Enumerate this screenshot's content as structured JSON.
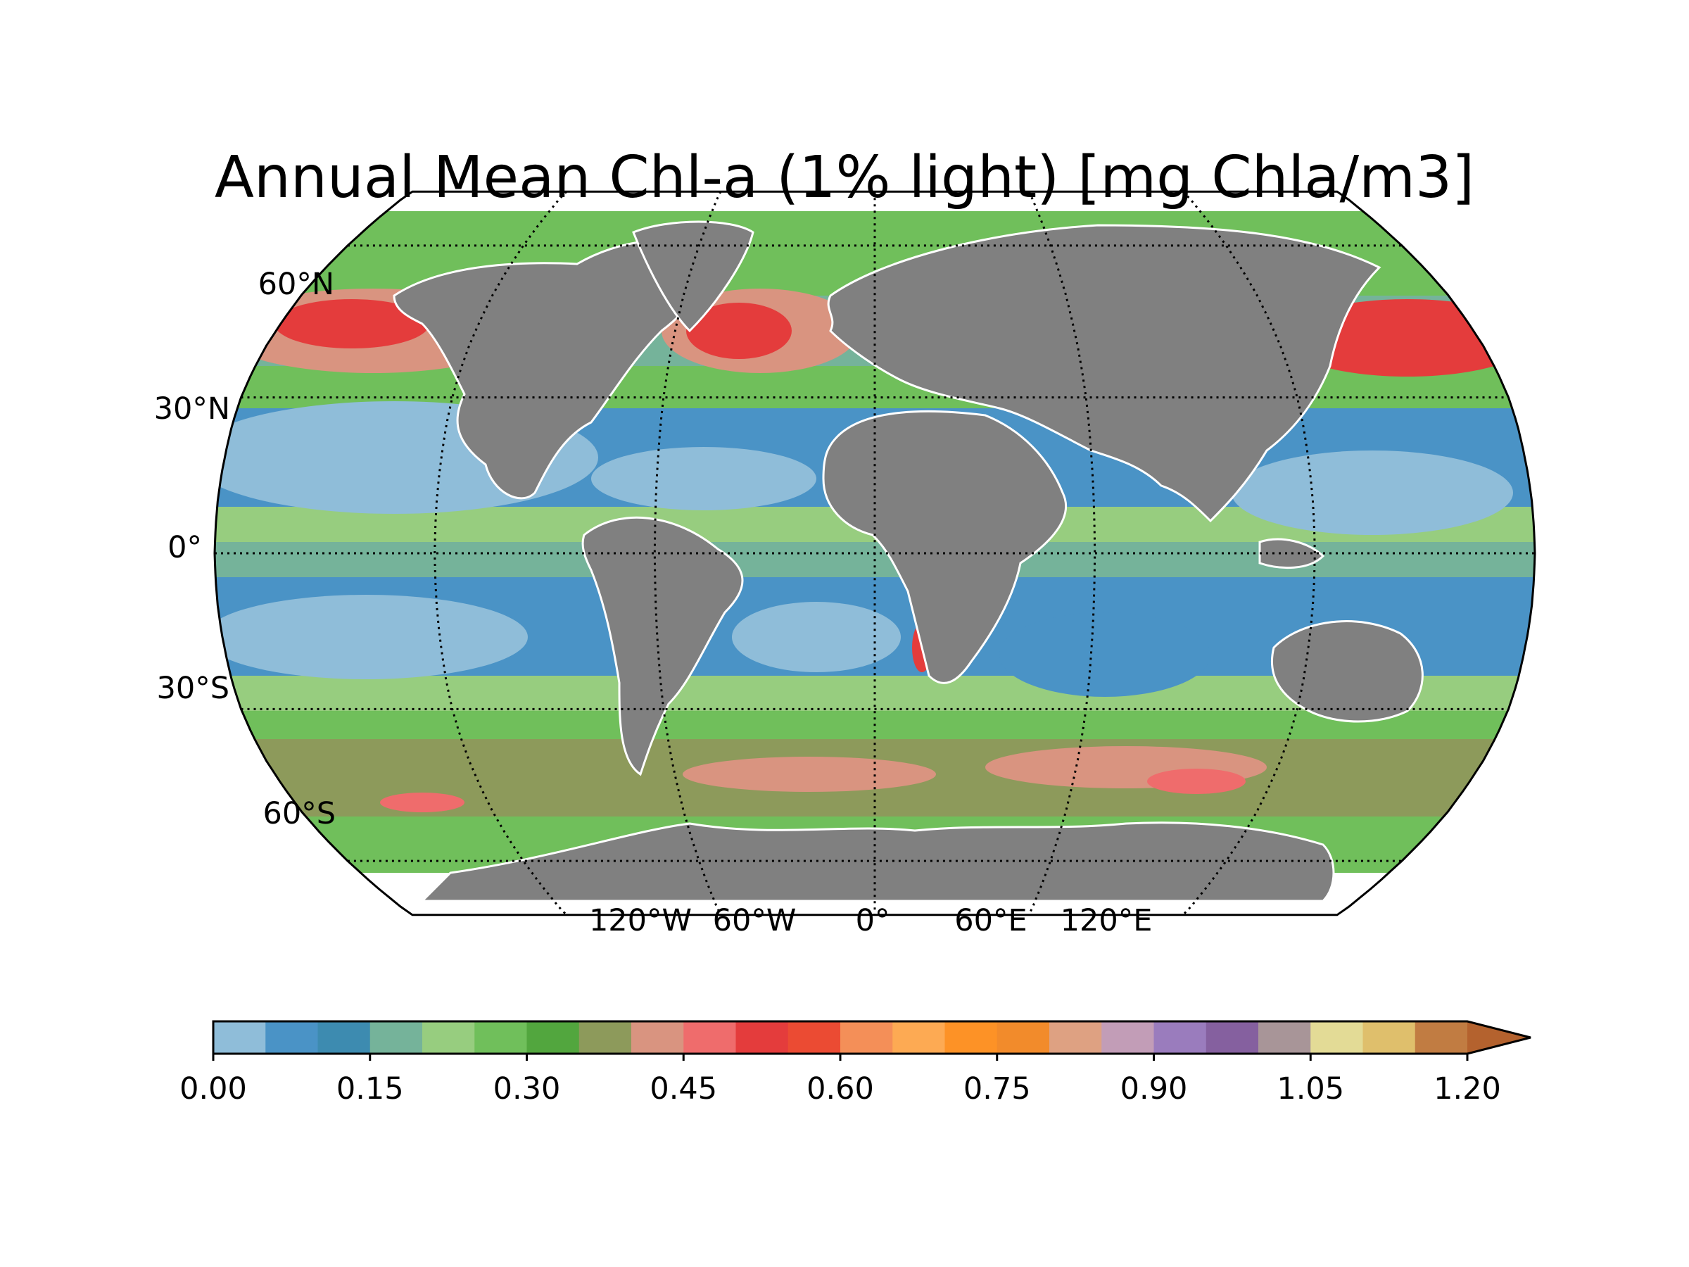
{
  "title": "Annual Mean Chl-a (1% light) [mg Chla/m3]",
  "latitude_labels": [
    "60°N",
    "30°N",
    "0°",
    "30°S",
    "60°S"
  ],
  "longitude_labels": [
    "120°W",
    "60°W",
    "0°",
    "60°E",
    "120°E"
  ],
  "projection": "Robinson",
  "land_color": "#808080",
  "colorbar": {
    "ticks": [
      "0.00",
      "0.15",
      "0.30",
      "0.45",
      "0.60",
      "0.75",
      "0.90",
      "1.05",
      "1.20"
    ],
    "min": 0.0,
    "max": 1.2,
    "step": 0.05,
    "extend": "max",
    "colors": [
      "#8fbdd9",
      "#4a93c6",
      "#3d8bb0",
      "#75b39a",
      "#97cd7f",
      "#70bf5b",
      "#52a63e",
      "#8d9a5b",
      "#d99480",
      "#ef6c6c",
      "#e43c3c",
      "#eb4b33",
      "#f48f58",
      "#fdaa53",
      "#fd9226",
      "#f28b2b",
      "#dea182",
      "#c29db7",
      "#9a7cbd",
      "#85609f",
      "#a89598",
      "#e3db96",
      "#dfbf6c",
      "#c17c42"
    ],
    "extend_color": "#b4622e"
  }
}
